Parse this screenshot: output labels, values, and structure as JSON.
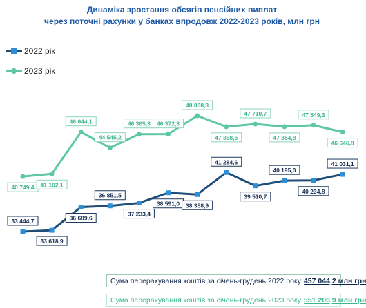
{
  "chart_data": {
    "type": "line",
    "title_line1": "Динаміка зростання обсягів пенсійних виплат",
    "title_line2": "через поточні рахунки у банках впродовж 2022-2023 років, млн грн",
    "series": [
      {
        "name": "2022 рік",
        "color": "#1f4e79",
        "values": [
          33444.7,
          33618.9,
          36689.6,
          36851.5,
          37233.4,
          38591.0,
          38358.9,
          41284.6,
          39510.7,
          40195.0,
          40234.8,
          41031.1
        ],
        "labels": [
          "33 444,7",
          "33 618,9",
          "36 689,6",
          "36 851,5",
          "37 233,4",
          "38 591,0",
          "38 358,9",
          "41 284,6",
          "39 510,7",
          "40 195,0",
          "40 234,8",
          "41 031,1"
        ]
      },
      {
        "name": "2023 рік",
        "color": "#5cc7a0",
        "values": [
          40749.4,
          41102.1,
          46644.1,
          44545.2,
          46365.3,
          46372.3,
          48808.3,
          47358.6,
          47710.7,
          47354.8,
          47549.3,
          46646.8
        ],
        "labels": [
          "40 749,4",
          "41 102,1",
          "46 644,1",
          "44 545,2",
          "46 365,3",
          "46 372,3",
          "48 808,3",
          "47 358,6",
          "47 710,7",
          "47 354,8",
          "47 549,3",
          "46 646,8"
        ]
      }
    ],
    "legend_position": "top-left"
  },
  "summary": {
    "line2022_text": "Сума перерахування коштів  за січень-грудень 2022 року",
    "line2022_value": "457 044,2 млн грн",
    "line2023_text": "Сума перерахування коштів  за січень-грудень 2023 року",
    "line2023_value": "551 206,9 млн грн"
  }
}
